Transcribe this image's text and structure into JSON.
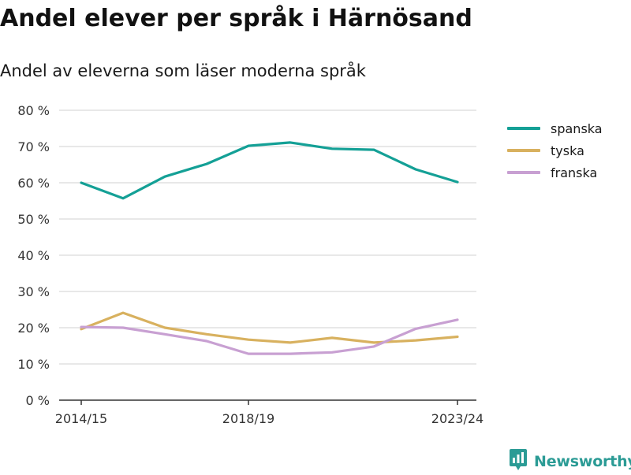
{
  "title": "Andel elever per språk i Härnösand",
  "subtitle": "Andel av eleverna som läser moderna språk",
  "brand": {
    "name": "Newsworthy",
    "icon": "newsworthy-logo-icon"
  },
  "colors": {
    "spanska": "#14a096",
    "tyska": "#d8b15f",
    "franska": "#c8a0d2",
    "grid": "#d9d9d9",
    "axis": "#333333"
  },
  "chart_data": {
    "type": "line",
    "title": "Andel elever per språk i Härnösand",
    "subtitle": "Andel av eleverna som läser moderna språk",
    "x": [
      "2014/15",
      "2015/16",
      "2016/17",
      "2017/18",
      "2018/19",
      "2019/20",
      "2020/21",
      "2021/22",
      "2022/23",
      "2023/24"
    ],
    "x_tick_labels": [
      "2014/15",
      "2018/19",
      "2023/24"
    ],
    "y_tick_labels": [
      "0 %",
      "10 %",
      "20 %",
      "30 %",
      "40 %",
      "50 %",
      "60 %",
      "70 %",
      "80 %"
    ],
    "ylim": [
      0,
      80
    ],
    "grid": true,
    "legend_position": "right",
    "xlabel": "",
    "ylabel": "",
    "series": [
      {
        "name": "spanska",
        "color": "#14a096",
        "values": [
          60,
          55.7,
          61.7,
          65.2,
          70.2,
          71.1,
          69.4,
          69.1,
          63.7,
          60.2
        ]
      },
      {
        "name": "tyska",
        "color": "#d8b15f",
        "values": [
          19.6,
          24.1,
          20.0,
          18.2,
          16.7,
          15.9,
          17.2,
          15.9,
          16.5,
          17.5
        ]
      },
      {
        "name": "franska",
        "color": "#c8a0d2",
        "values": [
          20.2,
          20.0,
          18.2,
          16.3,
          12.8,
          12.8,
          13.2,
          14.8,
          19.7,
          22.2
        ]
      }
    ]
  }
}
